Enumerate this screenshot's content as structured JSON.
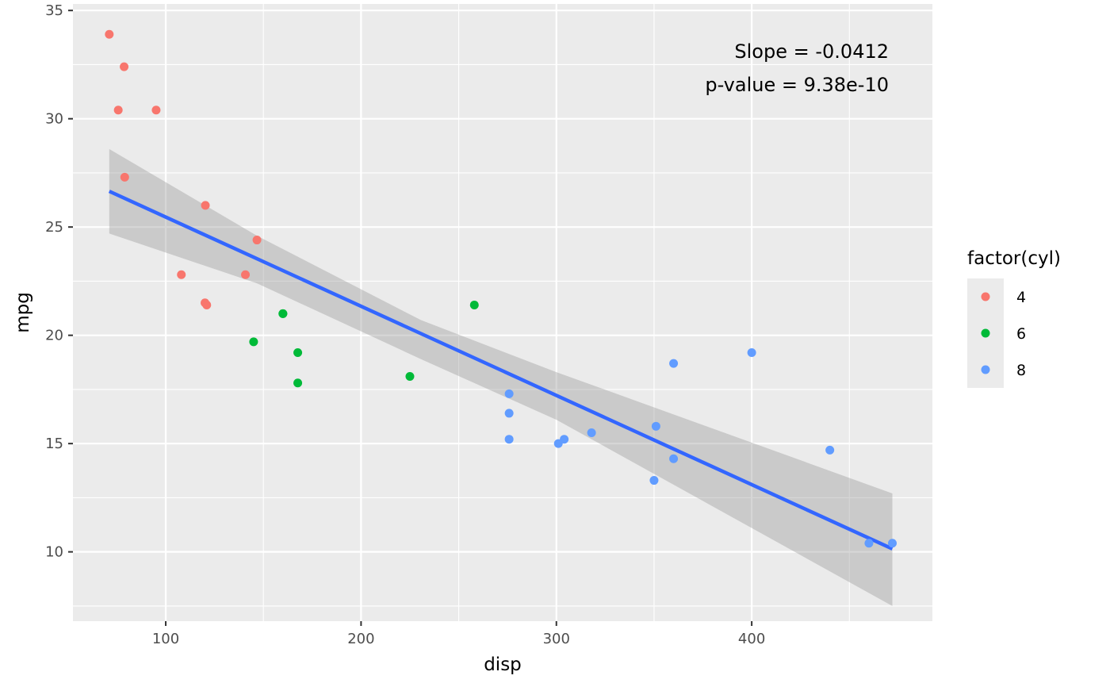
{
  "chart_data": {
    "type": "scatter",
    "xlabel": "disp",
    "ylabel": "mpg",
    "xlim": [
      52.5,
      492.5
    ],
    "ylim": [
      6.8,
      35.3
    ],
    "x_ticks": [
      100,
      200,
      300,
      400
    ],
    "y_ticks": [
      10,
      15,
      20,
      25,
      30,
      35
    ],
    "grid": true,
    "legend": {
      "title": "factor(cyl)",
      "position": "right"
    },
    "annotations": [
      "Slope = -0.0412",
      "p-value = 9.38e-10"
    ],
    "series": [
      {
        "name": "4",
        "color": "#F8766D",
        "points": [
          [
            71.1,
            33.9
          ],
          [
            78.7,
            32.4
          ],
          [
            75.7,
            30.4
          ],
          [
            95.1,
            30.4
          ],
          [
            79.0,
            27.3
          ],
          [
            120.3,
            26.0
          ],
          [
            146.7,
            24.4
          ],
          [
            108.0,
            22.8
          ],
          [
            140.8,
            22.8
          ],
          [
            120.1,
            21.5
          ],
          [
            121.0,
            21.4
          ]
        ]
      },
      {
        "name": "6",
        "color": "#00BA38",
        "points": [
          [
            160.0,
            21.0
          ],
          [
            160.0,
            21.0
          ],
          [
            258.0,
            21.4
          ],
          [
            225.0,
            18.1
          ],
          [
            167.6,
            19.2
          ],
          [
            167.6,
            17.8
          ],
          [
            145.0,
            19.7
          ]
        ]
      },
      {
        "name": "8",
        "color": "#619CFF",
        "points": [
          [
            360.0,
            18.7
          ],
          [
            360.0,
            14.3
          ],
          [
            275.8,
            16.4
          ],
          [
            275.8,
            17.3
          ],
          [
            275.8,
            15.2
          ],
          [
            472.0,
            10.4
          ],
          [
            460.0,
            10.4
          ],
          [
            440.0,
            14.7
          ],
          [
            318.0,
            15.5
          ],
          [
            304.0,
            15.2
          ],
          [
            350.0,
            13.3
          ],
          [
            400.0,
            19.2
          ],
          [
            351.0,
            15.8
          ],
          [
            301.0,
            15.0
          ]
        ]
      }
    ],
    "fit": {
      "type": "lm",
      "color": "#3366FF",
      "line": [
        [
          71.1,
          26.65
        ],
        [
          472.0,
          10.14
        ]
      ],
      "ci_band": [
        [
          71.1,
          24.7,
          28.6
        ],
        [
          146.7,
          22.4,
          24.6
        ],
        [
          230.7,
          18.9,
          20.7
        ],
        [
          300.0,
          16.1,
          18.3
        ],
        [
          472.0,
          7.5,
          12.7
        ]
      ],
      "ci_color": "#999999"
    }
  }
}
